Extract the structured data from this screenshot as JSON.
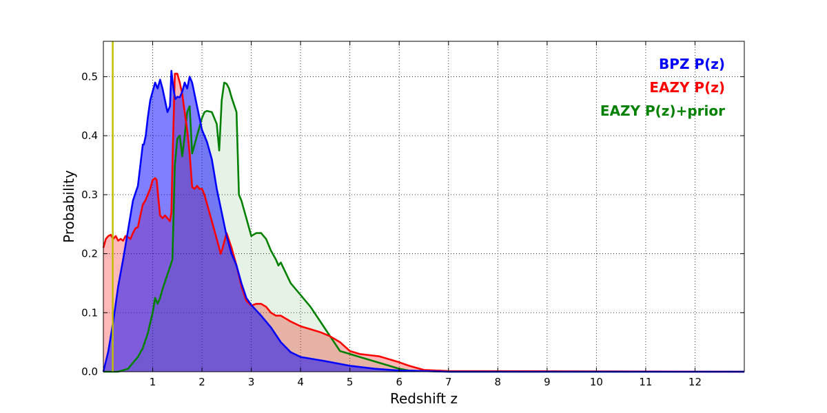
{
  "chart_data": {
    "type": "area",
    "xlabel": "Redshift z",
    "ylabel": "Probability",
    "xlim": [
      0,
      13
    ],
    "ylim": [
      0,
      0.56
    ],
    "xticks": [
      "1",
      "2",
      "3",
      "4",
      "5",
      "6",
      "7",
      "8",
      "9",
      "10",
      "11",
      "12"
    ],
    "yticks": [
      "0.0",
      "0.1",
      "0.2",
      "0.3",
      "0.4",
      "0.5"
    ],
    "grid": true,
    "legend_position": "top-right",
    "reference_line": {
      "x": 0.19,
      "color": "#bfbf00"
    },
    "series": [
      {
        "name": "BPZ P(z)",
        "color": "#0000ff",
        "fill": "#0000ff",
        "fill_opacity": 0.5,
        "x": [
          0,
          0.1,
          0.2,
          0.3,
          0.4,
          0.5,
          0.6,
          0.7,
          0.8,
          0.82,
          0.86,
          0.9,
          0.95,
          1.0,
          1.05,
          1.1,
          1.15,
          1.2,
          1.25,
          1.3,
          1.35,
          1.38,
          1.42,
          1.46,
          1.5,
          1.55,
          1.6,
          1.65,
          1.7,
          1.75,
          1.8,
          1.9,
          2.0,
          2.1,
          2.2,
          2.3,
          2.4,
          2.5,
          2.6,
          2.7,
          2.8,
          2.9,
          3.0,
          3.2,
          3.4,
          3.6,
          3.8,
          4.0,
          4.5,
          5.0,
          5.5,
          6.0,
          6.5,
          7.0,
          8.0,
          13.0
        ],
        "values": [
          0.0,
          0.035,
          0.085,
          0.145,
          0.19,
          0.24,
          0.29,
          0.315,
          0.385,
          0.385,
          0.4,
          0.43,
          0.46,
          0.475,
          0.49,
          0.48,
          0.495,
          0.48,
          0.46,
          0.44,
          0.45,
          0.51,
          0.48,
          0.462,
          0.466,
          0.465,
          0.475,
          0.49,
          0.48,
          0.5,
          0.49,
          0.45,
          0.41,
          0.39,
          0.36,
          0.31,
          0.27,
          0.23,
          0.2,
          0.18,
          0.15,
          0.125,
          0.113,
          0.095,
          0.075,
          0.05,
          0.033,
          0.025,
          0.018,
          0.01,
          0.005,
          0.002,
          0.001,
          0.0,
          0.0,
          0.0
        ]
      },
      {
        "name": "EAZY P(z)",
        "color": "#ff0000",
        "fill": "#ff0000",
        "fill_opacity": 0.28,
        "x": [
          0,
          0.05,
          0.1,
          0.15,
          0.2,
          0.25,
          0.3,
          0.35,
          0.4,
          0.45,
          0.5,
          0.55,
          0.6,
          0.65,
          0.7,
          0.75,
          0.8,
          0.85,
          0.9,
          0.95,
          1.0,
          1.05,
          1.08,
          1.12,
          1.15,
          1.2,
          1.25,
          1.3,
          1.35,
          1.38,
          1.4,
          1.45,
          1.5,
          1.55,
          1.6,
          1.65,
          1.7,
          1.75,
          1.8,
          1.85,
          1.9,
          1.95,
          2.0,
          2.05,
          2.1,
          2.2,
          2.3,
          2.38,
          2.42,
          2.5,
          2.6,
          2.7,
          2.8,
          2.9,
          3.0,
          3.1,
          3.2,
          3.3,
          3.4,
          3.5,
          3.6,
          3.7,
          3.8,
          4.0,
          4.2,
          4.4,
          4.6,
          4.8,
          5.0,
          5.2,
          5.4,
          5.6,
          5.8,
          6.0,
          6.2,
          6.5,
          7.0,
          13.0
        ],
        "values": [
          0.21,
          0.225,
          0.23,
          0.232,
          0.225,
          0.23,
          0.222,
          0.225,
          0.222,
          0.23,
          0.228,
          0.225,
          0.235,
          0.243,
          0.245,
          0.265,
          0.283,
          0.29,
          0.3,
          0.31,
          0.325,
          0.328,
          0.325,
          0.29,
          0.265,
          0.26,
          0.265,
          0.26,
          0.255,
          0.27,
          0.35,
          0.505,
          0.505,
          0.49,
          0.47,
          0.44,
          0.41,
          0.37,
          0.313,
          0.31,
          0.315,
          0.31,
          0.31,
          0.3,
          0.285,
          0.255,
          0.225,
          0.2,
          0.21,
          0.235,
          0.21,
          0.18,
          0.145,
          0.12,
          0.112,
          0.115,
          0.115,
          0.11,
          0.1,
          0.095,
          0.095,
          0.09,
          0.085,
          0.077,
          0.072,
          0.067,
          0.06,
          0.05,
          0.035,
          0.03,
          0.028,
          0.026,
          0.021,
          0.016,
          0.01,
          0.003,
          0.001,
          0.0
        ]
      },
      {
        "name": "EAZY P(z)+prior",
        "color": "#008000",
        "fill": "#008000",
        "fill_opacity": 0.1,
        "x": [
          0,
          0.3,
          0.5,
          0.6,
          0.7,
          0.8,
          0.9,
          1.0,
          1.05,
          1.1,
          1.15,
          1.2,
          1.3,
          1.4,
          1.45,
          1.5,
          1.55,
          1.6,
          1.65,
          1.7,
          1.75,
          1.8,
          1.9,
          2.0,
          2.05,
          2.1,
          2.2,
          2.3,
          2.35,
          2.4,
          2.45,
          2.5,
          2.55,
          2.6,
          2.7,
          2.75,
          2.8,
          2.85,
          2.9,
          3.0,
          3.1,
          3.2,
          3.3,
          3.4,
          3.5,
          3.55,
          3.6,
          3.8,
          4.0,
          4.2,
          4.4,
          4.6,
          4.8,
          5.0,
          5.2,
          5.4,
          5.6,
          5.8,
          6.0,
          6.2,
          6.5,
          7.0,
          13.0
        ],
        "values": [
          0.0,
          0.0,
          0.005,
          0.015,
          0.025,
          0.04,
          0.065,
          0.1,
          0.125,
          0.115,
          0.125,
          0.14,
          0.165,
          0.19,
          0.35,
          0.395,
          0.4,
          0.365,
          0.4,
          0.44,
          0.45,
          0.37,
          0.4,
          0.43,
          0.44,
          0.442,
          0.44,
          0.42,
          0.375,
          0.46,
          0.49,
          0.488,
          0.48,
          0.465,
          0.44,
          0.3,
          0.29,
          0.275,
          0.26,
          0.23,
          0.235,
          0.235,
          0.225,
          0.205,
          0.19,
          0.18,
          0.185,
          0.15,
          0.13,
          0.11,
          0.085,
          0.06,
          0.035,
          0.03,
          0.025,
          0.02,
          0.015,
          0.01,
          0.005,
          0.002,
          0.001,
          0.0,
          0.0
        ]
      }
    ]
  }
}
